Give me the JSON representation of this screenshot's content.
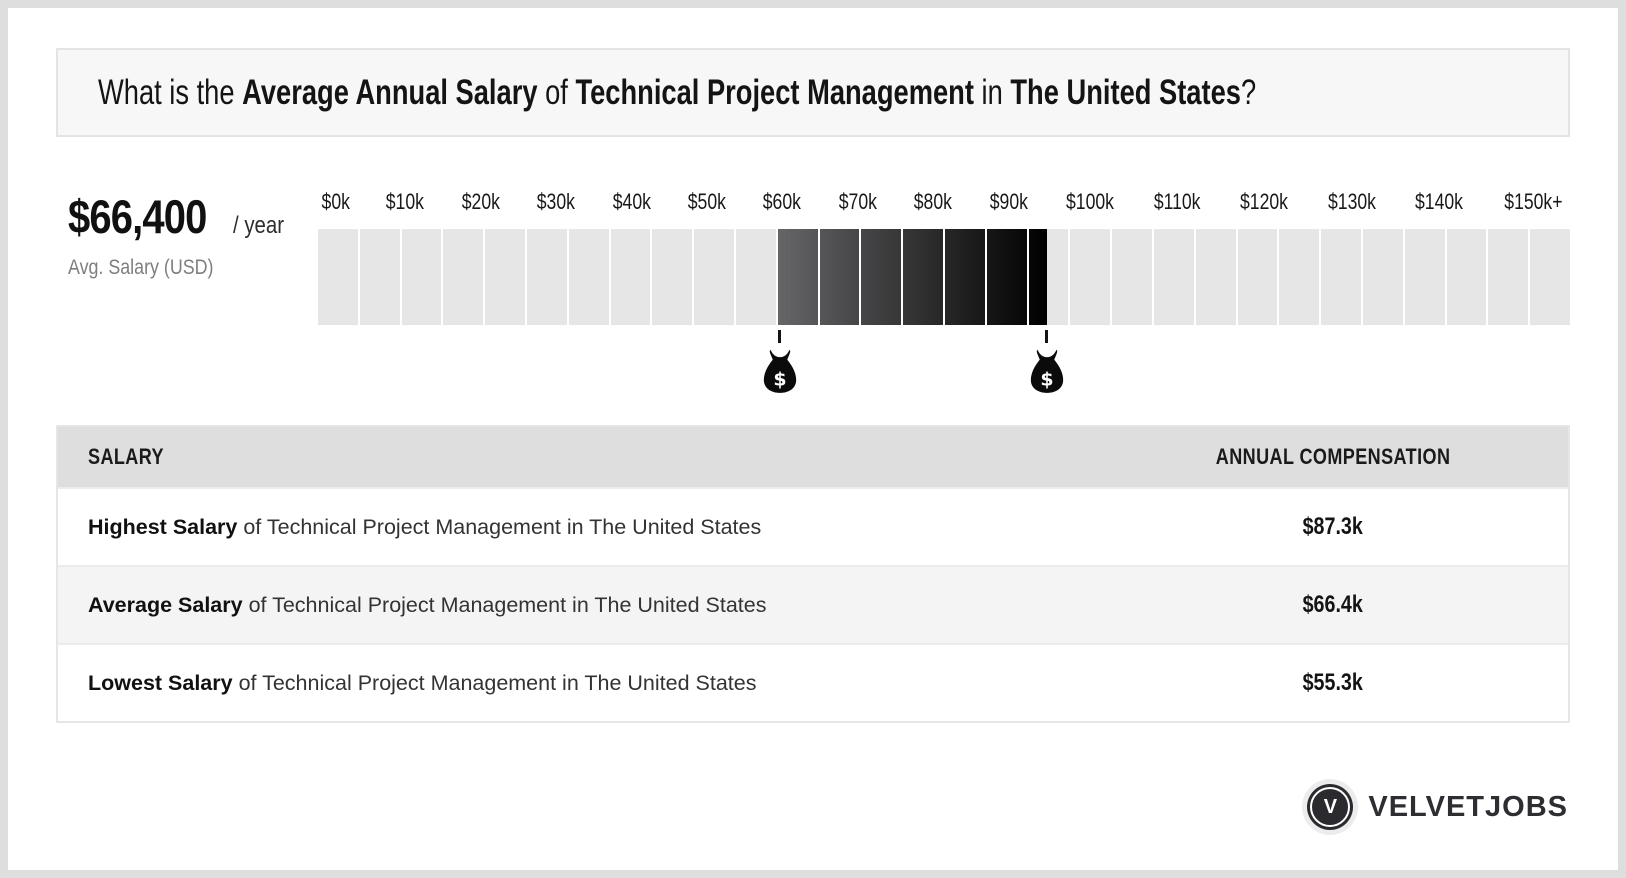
{
  "header": {
    "question_segments": [
      {
        "text": "What is the ",
        "bold": false
      },
      {
        "text": "Average Annual Salary",
        "bold": true
      },
      {
        "text": " of ",
        "bold": false
      },
      {
        "text": "Technical Project Management",
        "bold": true
      },
      {
        "text": " in ",
        "bold": false
      },
      {
        "text": "The United States",
        "bold": true
      },
      {
        "text": "?",
        "bold": false
      }
    ]
  },
  "chart_data": {
    "type": "bar",
    "subtype": "salary-range-gauge",
    "title": "What is the Average Annual Salary of Technical Project Management in The United States?",
    "avg_salary_label": "$66,400",
    "avg_salary_suffix": "/ year",
    "avg_caption": "Avg. Salary (USD)",
    "tick_labels": [
      "$0k",
      "$10k",
      "$20k",
      "$30k",
      "$40k",
      "$50k",
      "$60k",
      "$70k",
      "$80k",
      "$90k",
      "$100k",
      "$110k",
      "$120k",
      "$130k",
      "$140k",
      "$150k+"
    ],
    "axis_range_k": [
      0,
      150
    ],
    "cell_size_k": 5,
    "highlight_min_k": 55.3,
    "highlight_max_k": 87.3,
    "avg_k": 66.4,
    "marker_values_k": [
      55.3,
      87.3
    ],
    "marker_icon": "money-bag",
    "marker_glyph": "$",
    "colors": {
      "cell_light": "#e6e6e6",
      "gradient_start": "#666668",
      "gradient_end": "#000000",
      "marker": "#0b0b0b"
    },
    "legend": "none",
    "grid": "off"
  },
  "table": {
    "headers": [
      "SALARY",
      "ANNUAL COMPENSATION"
    ],
    "rows": [
      {
        "label_bold": "Highest Salary",
        "label_rest": " of Technical Project Management in The United States",
        "value": "$87.3k"
      },
      {
        "label_bold": "Average Salary",
        "label_rest": " of Technical Project Management in The United States",
        "value": "$66.4k"
      },
      {
        "label_bold": "Lowest Salary",
        "label_rest": " of Technical Project Management in The United States",
        "value": "$55.3k"
      }
    ]
  },
  "footer": {
    "brand": "VELVETJOBS",
    "brand_initial": "V"
  }
}
